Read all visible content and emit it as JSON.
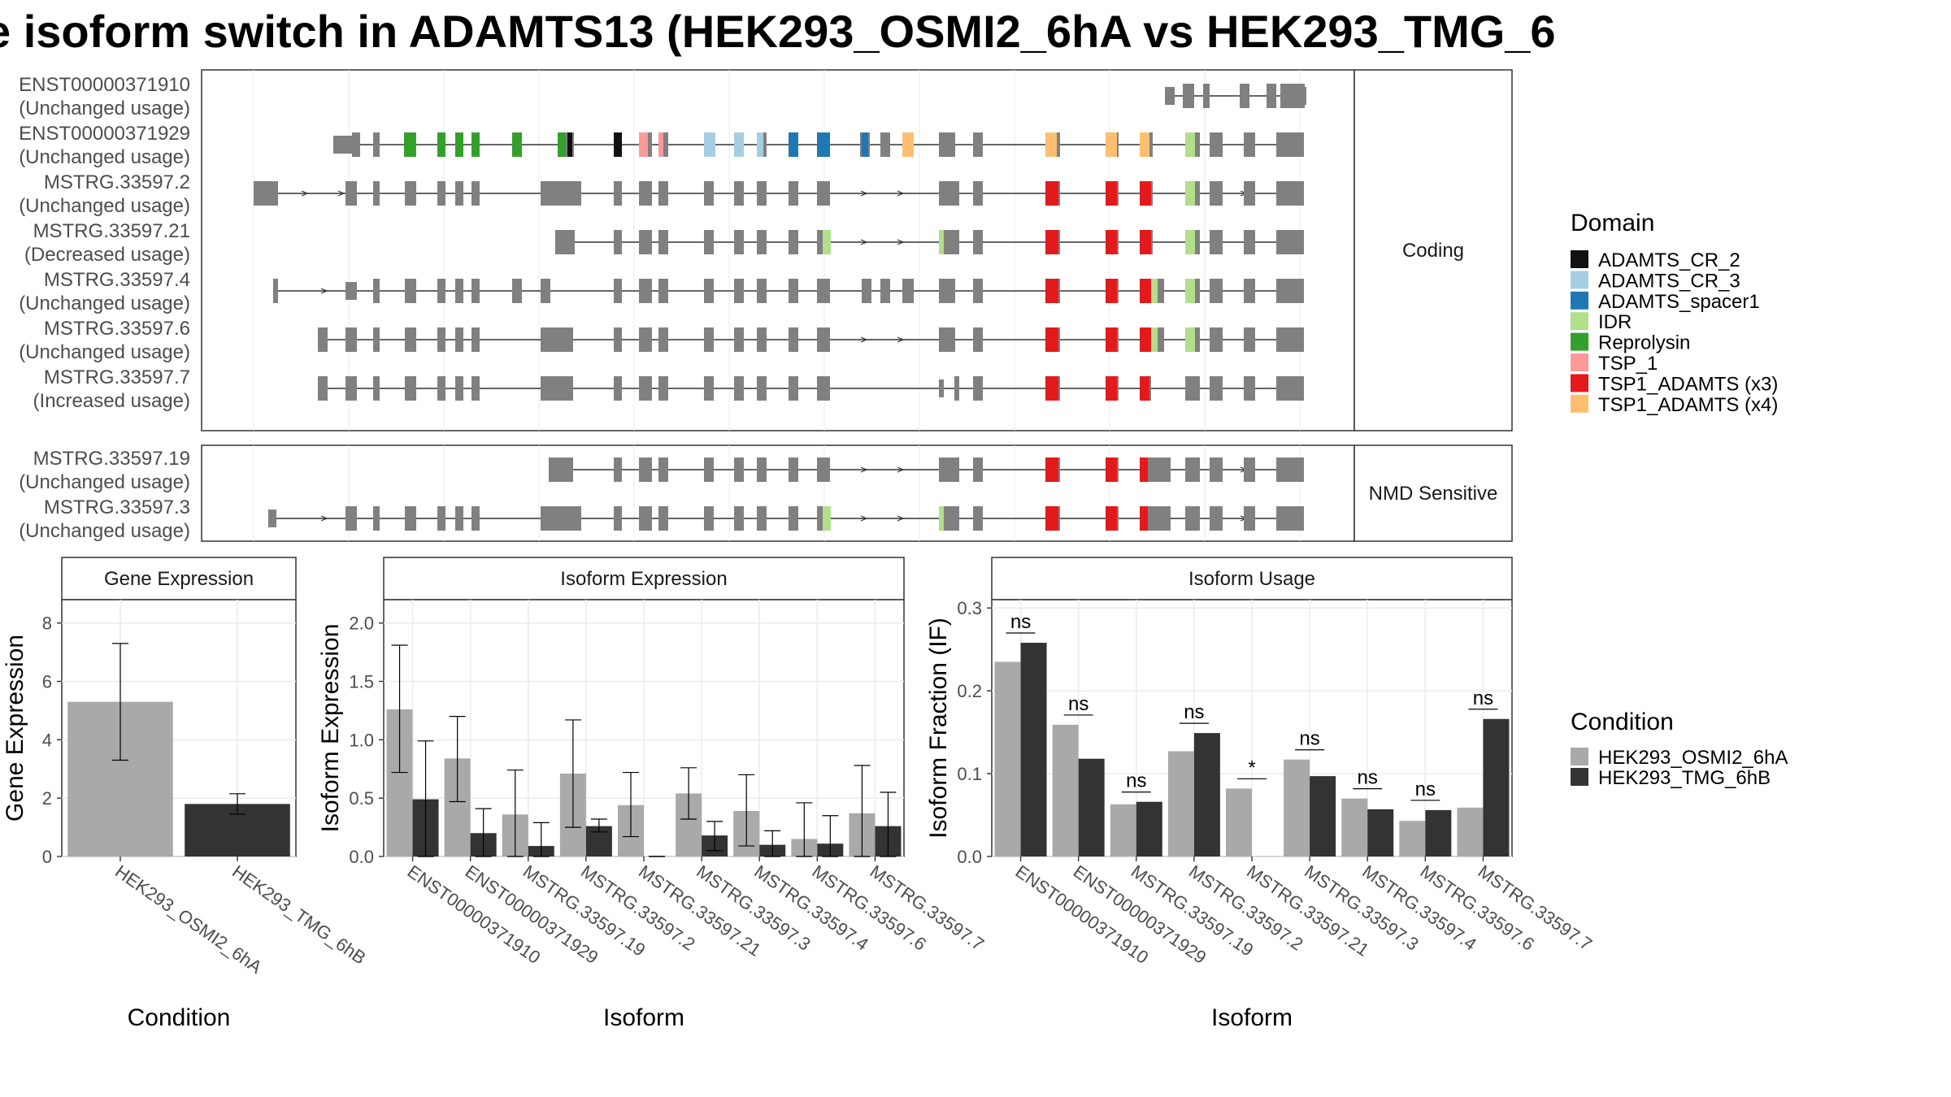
{
  "title": "e isoform switch in ADAMTS13 (HEK293_OSMI2_6hA vs HEK293_TMG_6",
  "colors": {
    "exon_default": "#808080",
    "cond1": "#A9A9A9",
    "cond2": "#333333",
    "domains": {
      "ADAMTS_CR_2": "#111111",
      "ADAMTS_CR_3": "#A6CEE3",
      "ADAMTS_spacer1": "#1F78B4",
      "IDR": "#B2DF8A",
      "Reprolysin": "#33A02C",
      "TSP_1": "#FB9A99",
      "TSP1_ADAMTS (x3)": "#E31A1C",
      "TSP1_ADAMTS (x4)": "#FDBF6F"
    }
  },
  "chart_data": [
    {
      "type": "structure",
      "panel": "isoform-structures",
      "groups": [
        {
          "label": "Coding",
          "isoforms": [
            {
              "id": "ENST00000371910",
              "usage": "(Unchanged usage)"
            },
            {
              "id": "ENST00000371929",
              "usage": "(Unchanged usage)"
            },
            {
              "id": "MSTRG.33597.2",
              "usage": "(Unchanged usage)"
            },
            {
              "id": "MSTRG.33597.21",
              "usage": "(Decreased usage)"
            },
            {
              "id": "MSTRG.33597.4",
              "usage": "(Unchanged usage)"
            },
            {
              "id": "MSTRG.33597.6",
              "usage": "(Unchanged usage)"
            },
            {
              "id": "MSTRG.33597.7",
              "usage": "(Increased usage)"
            }
          ]
        },
        {
          "label": "NMD Sensitive",
          "isoforms": [
            {
              "id": "MSTRG.33597.19",
              "usage": "(Unchanged usage)"
            },
            {
              "id": "MSTRG.33597.3",
              "usage": "(Unchanged usage)"
            }
          ]
        }
      ],
      "legend_title": "Domain",
      "legend": [
        "ADAMTS_CR_2",
        "ADAMTS_CR_3",
        "ADAMTS_spacer1",
        "IDR",
        "Reprolysin",
        "TSP_1",
        "TSP1_ADAMTS (x3)",
        "TSP1_ADAMTS (x4)"
      ]
    },
    {
      "type": "bar",
      "panel": "Gene Expression",
      "xlabel": "Condition",
      "ylabel": "Gene Expression",
      "ylim": [
        0,
        8.8
      ],
      "yticks": [
        0,
        2,
        4,
        6,
        8
      ],
      "categories": [
        "HEK293_OSMI2_6hA",
        "HEK293_TMG_6hB"
      ],
      "values": [
        5.3,
        1.8
      ],
      "error": [
        [
          3.3,
          7.3
        ],
        [
          1.45,
          2.15
        ]
      ]
    },
    {
      "type": "bar",
      "panel": "Isoform Expression",
      "xlabel": "Isoform",
      "ylabel": "Isoform Expression",
      "ylim": [
        0,
        2.2
      ],
      "yticks": [
        0.0,
        0.5,
        1.0,
        1.5,
        2.0
      ],
      "tick_labels": [
        "0.0",
        "0.5",
        "1.0",
        "1.5",
        "2.0"
      ],
      "categories": [
        "ENST00000371910",
        "ENST00000371929",
        "MSTRG.33597.19",
        "MSTRG.33597.2",
        "MSTRG.33597.21",
        "MSTRG.33597.3",
        "MSTRG.33597.4",
        "MSTRG.33597.6",
        "MSTRG.33597.7"
      ],
      "series": [
        {
          "name": "HEK293_OSMI2_6hA",
          "values": [
            1.26,
            0.84,
            0.36,
            0.71,
            0.44,
            0.54,
            0.39,
            0.15,
            0.37
          ],
          "error": [
            [
              0.72,
              1.81
            ],
            [
              0.47,
              1.2
            ],
            [
              0.0,
              0.74
            ],
            [
              0.25,
              1.17
            ],
            [
              0.17,
              0.72
            ],
            [
              0.32,
              0.76
            ],
            [
              0.09,
              0.7
            ],
            [
              0.0,
              0.46
            ],
            [
              0.0,
              0.78
            ]
          ]
        },
        {
          "name": "HEK293_TMG_6hB",
          "values": [
            0.49,
            0.2,
            0.09,
            0.26,
            0.0,
            0.18,
            0.1,
            0.11,
            0.26
          ],
          "error": [
            [
              0.0,
              0.99
            ],
            [
              0.0,
              0.41
            ],
            [
              0.0,
              0.29
            ],
            [
              0.21,
              0.32
            ],
            [
              0.0,
              0.0
            ],
            [
              0.05,
              0.3
            ],
            [
              0.0,
              0.22
            ],
            [
              0.0,
              0.35
            ],
            [
              0.0,
              0.55
            ]
          ]
        }
      ]
    },
    {
      "type": "bar",
      "panel": "Isoform Usage",
      "xlabel": "Isoform",
      "ylabel": "Isoform Fraction (IF)",
      "ylim": [
        0,
        0.31
      ],
      "yticks": [
        0.0,
        0.1,
        0.2,
        0.3
      ],
      "tick_labels": [
        "0.0",
        "0.1",
        "0.2",
        "0.3"
      ],
      "categories": [
        "ENST00000371910",
        "ENST00000371929",
        "MSTRG.33597.19",
        "MSTRG.33597.2",
        "MSTRG.33597.21",
        "MSTRG.33597.3",
        "MSTRG.33597.4",
        "MSTRG.33597.6",
        "MSTRG.33597.7"
      ],
      "series": [
        {
          "name": "HEK293_OSMI2_6hA",
          "values": [
            0.235,
            0.159,
            0.063,
            0.127,
            0.082,
            0.117,
            0.07,
            0.043,
            0.059
          ]
        },
        {
          "name": "HEK293_TMG_6hB",
          "values": [
            0.258,
            0.118,
            0.066,
            0.149,
            0.0,
            0.097,
            0.057,
            0.056,
            0.166
          ]
        }
      ],
      "significance": [
        "ns",
        "ns",
        "ns",
        "ns",
        "*",
        "ns",
        "ns",
        "ns",
        "ns"
      ]
    }
  ],
  "condition_legend": {
    "title": "Condition",
    "entries": [
      "HEK293_OSMI2_6hA",
      "HEK293_TMG_6hB"
    ]
  }
}
